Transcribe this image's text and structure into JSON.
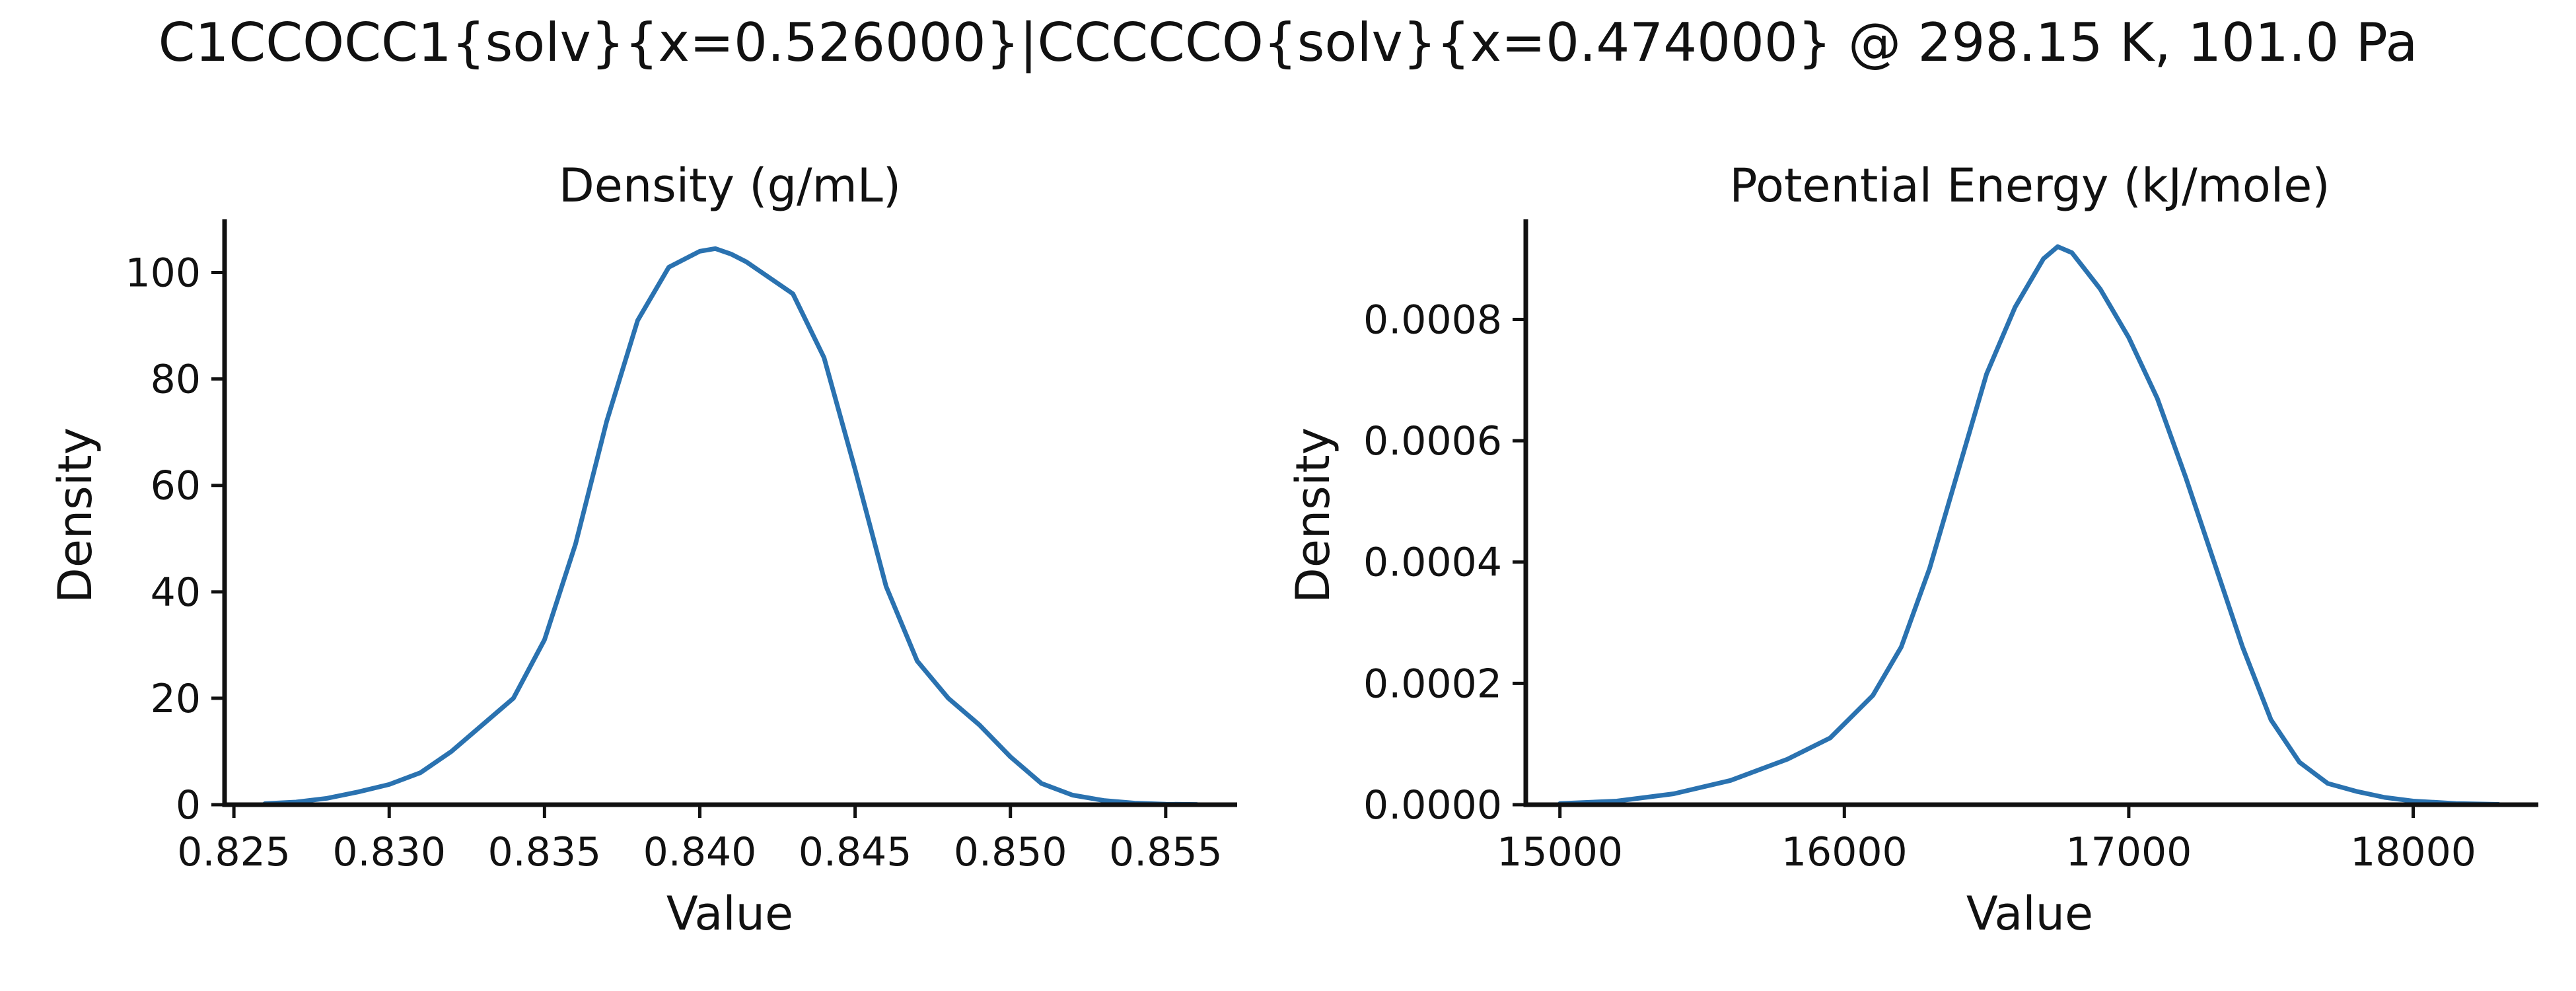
{
  "figure": {
    "title": "C1CCOCC1{solv}{x=0.526000}|CCCCCO{solv}{x=0.474000} @ 298.15 K, 101.0 Pa"
  },
  "chart_data": [
    {
      "type": "line",
      "title": "Density (g/mL)",
      "xlabel": "Value",
      "ylabel": "Density",
      "xlim": [
        0.8247,
        0.8573
      ],
      "ylim": [
        0,
        110
      ],
      "xticks": [
        0.825,
        0.83,
        0.835,
        0.84,
        0.845,
        0.85,
        0.855
      ],
      "xtick_labels": [
        "0.825",
        "0.830",
        "0.835",
        "0.840",
        "0.845",
        "0.850",
        "0.855"
      ],
      "yticks": [
        0,
        20,
        40,
        60,
        80,
        100
      ],
      "ytick_labels": [
        "0",
        "20",
        "40",
        "60",
        "80",
        "100"
      ],
      "grid": false,
      "color": "#2a72b0",
      "x": [
        0.826,
        0.827,
        0.828,
        0.829,
        0.83,
        0.831,
        0.832,
        0.833,
        0.834,
        0.835,
        0.836,
        0.837,
        0.838,
        0.839,
        0.84,
        0.8405,
        0.841,
        0.8415,
        0.842,
        0.843,
        0.844,
        0.845,
        0.846,
        0.847,
        0.848,
        0.849,
        0.85,
        0.851,
        0.852,
        0.853,
        0.854,
        0.855,
        0.856
      ],
      "y": [
        0.2,
        0.5,
        1.2,
        2.4,
        3.8,
        6.0,
        10.0,
        15.0,
        20.0,
        31.0,
        49.0,
        72.0,
        91.0,
        101.0,
        104.0,
        104.5,
        103.5,
        102.0,
        100.0,
        96.0,
        84.0,
        63.0,
        41.0,
        27.0,
        20.0,
        15.0,
        9.0,
        4.0,
        1.8,
        0.8,
        0.3,
        0.1,
        0.05
      ]
    },
    {
      "type": "line",
      "title": "Potential Energy (kJ/mole)",
      "xlabel": "Value",
      "ylabel": "Density",
      "xlim": [
        14880,
        18440
      ],
      "ylim": [
        0,
        0.000965
      ],
      "xticks": [
        15000,
        16000,
        17000,
        18000
      ],
      "xtick_labels": [
        "15000",
        "16000",
        "17000",
        "18000"
      ],
      "yticks": [
        0,
        0.0002,
        0.0004,
        0.0006,
        0.0008
      ],
      "ytick_labels": [
        "0.0000",
        "0.0002",
        "0.0004",
        "0.0006",
        "0.0008"
      ],
      "grid": false,
      "color": "#2a72b0",
      "x": [
        15000,
        15200,
        15400,
        15600,
        15800,
        15950,
        16100,
        16200,
        16300,
        16400,
        16500,
        16600,
        16700,
        16750,
        16800,
        16900,
        17000,
        17100,
        17200,
        17300,
        17400,
        17500,
        17600,
        17700,
        17800,
        17900,
        18000,
        18150,
        18300
      ],
      "y": [
        2e-06,
        6e-06,
        1.8e-05,
        4e-05,
        7.5e-05,
        0.00011,
        0.00018,
        0.00026,
        0.00039,
        0.00055,
        0.00071,
        0.00082,
        0.0009,
        0.00092,
        0.00091,
        0.00085,
        0.00077,
        0.00067,
        0.00054,
        0.0004,
        0.00026,
        0.00014,
        7e-05,
        3.5e-05,
        2.2e-05,
        1.2e-05,
        6e-06,
        2e-06,
        5e-07
      ]
    }
  ]
}
